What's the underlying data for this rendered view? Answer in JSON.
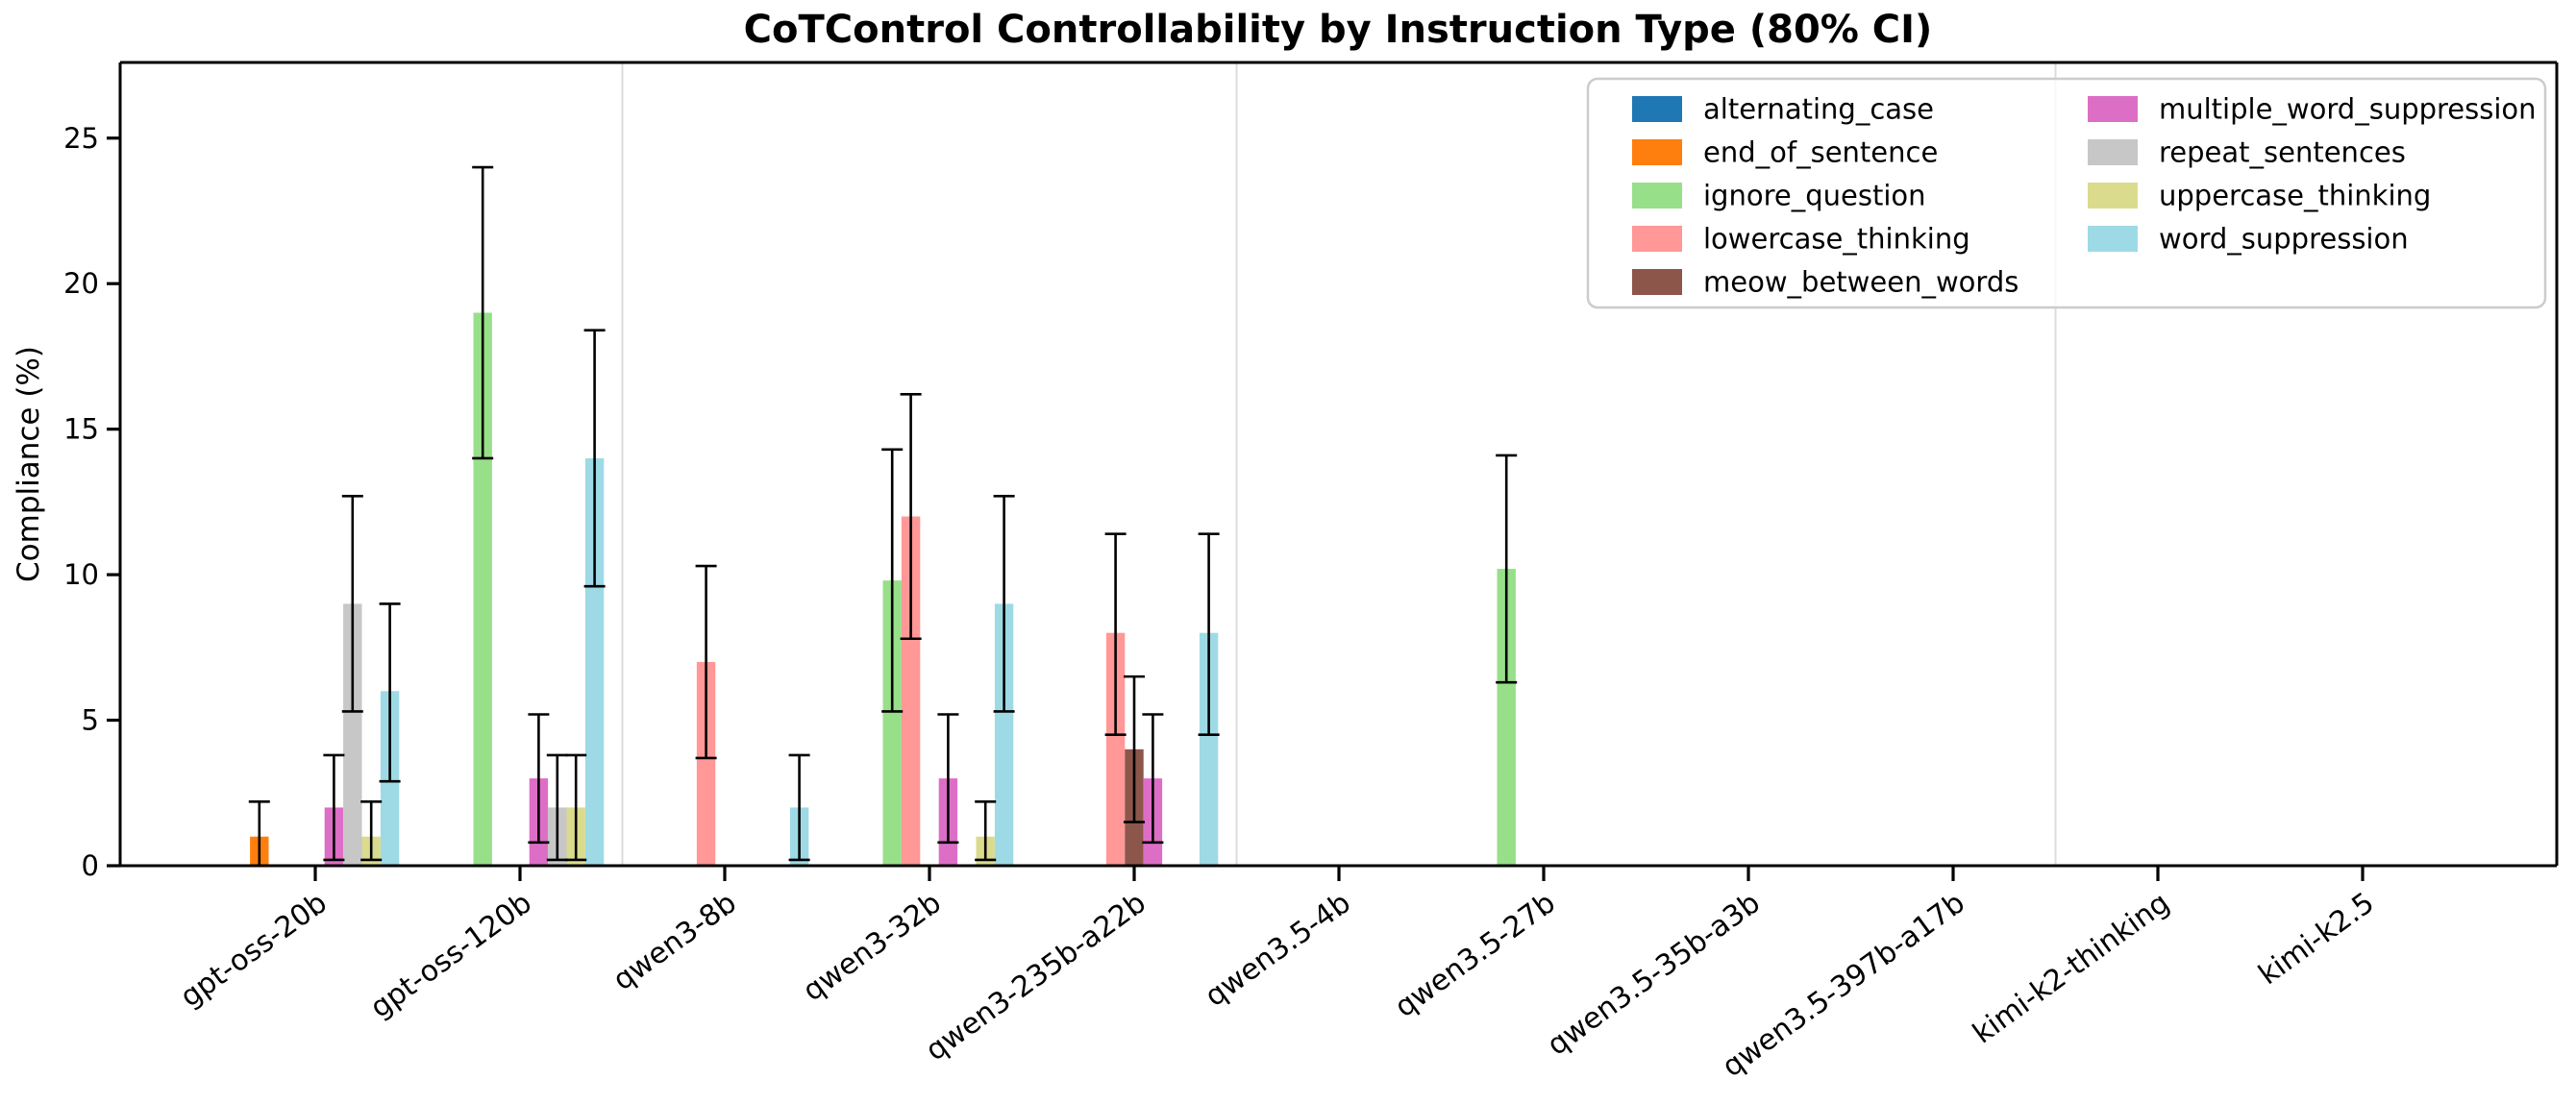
{
  "chart_data": {
    "type": "bar",
    "title": "CoTControl Controllability by Instruction Type (80% CI)",
    "ylabel": "Compliance (%)",
    "xlabel": "",
    "ylim": [
      0,
      27.6
    ],
    "yticks": [
      0,
      5,
      10,
      15,
      20,
      25
    ],
    "grid": "off",
    "error_bar_type": "80% confidence interval",
    "legend_position": "upper right, 2 columns",
    "categories": [
      "gpt-oss-20b",
      "gpt-oss-120b",
      "qwen3-8b",
      "qwen3-32b",
      "qwen3-235b-a22b",
      "qwen3.5-4b",
      "qwen3.5-27b",
      "qwen3.5-35b-a3b",
      "qwen3.5-397b-a17b",
      "kimi-k2-thinking",
      "kimi-k2.5"
    ],
    "family_separators_after_index": [
      1,
      4,
      8
    ],
    "series": [
      {
        "name": "alternating_case",
        "color": "#1f77b4",
        "values": [
          0,
          0,
          0,
          0,
          0,
          0,
          0,
          0,
          0,
          0,
          0
        ],
        "ci_low": [
          null,
          null,
          null,
          null,
          null,
          null,
          null,
          null,
          null,
          null,
          null
        ],
        "ci_high": [
          null,
          null,
          null,
          null,
          null,
          null,
          null,
          null,
          null,
          null,
          null
        ]
      },
      {
        "name": "end_of_sentence",
        "color": "#ff7f0e",
        "values": [
          1,
          0,
          0,
          0,
          0,
          0,
          0,
          0,
          0,
          0,
          0
        ],
        "ci_low": [
          0,
          null,
          null,
          null,
          null,
          null,
          null,
          null,
          null,
          null,
          null
        ],
        "ci_high": [
          2.2,
          null,
          null,
          null,
          null,
          null,
          null,
          null,
          null,
          null,
          null
        ]
      },
      {
        "name": "ignore_question",
        "color": "#98df8a",
        "values": [
          0,
          19,
          0,
          9.8,
          0,
          0,
          10.2,
          0,
          0,
          0,
          0
        ],
        "ci_low": [
          null,
          14,
          null,
          5.3,
          null,
          null,
          6.3,
          null,
          null,
          null,
          null
        ],
        "ci_high": [
          null,
          24,
          null,
          14.3,
          null,
          null,
          14.1,
          null,
          null,
          null,
          null
        ]
      },
      {
        "name": "lowercase_thinking",
        "color": "#ff9896",
        "values": [
          0,
          0,
          7,
          12,
          8,
          0,
          0,
          0,
          0,
          0,
          0
        ],
        "ci_low": [
          null,
          null,
          3.7,
          7.8,
          4.5,
          null,
          null,
          null,
          null,
          null,
          null
        ],
        "ci_high": [
          null,
          null,
          10.3,
          16.2,
          11.4,
          null,
          null,
          null,
          null,
          null,
          null
        ]
      },
      {
        "name": "meow_between_words",
        "color": "#8c564b",
        "values": [
          0,
          0,
          0,
          0,
          4,
          0,
          0,
          0,
          0,
          0,
          0
        ],
        "ci_low": [
          null,
          null,
          null,
          null,
          1.5,
          null,
          null,
          null,
          null,
          null,
          null
        ],
        "ci_high": [
          null,
          null,
          null,
          null,
          6.5,
          null,
          null,
          null,
          null,
          null,
          null
        ]
      },
      {
        "name": "multiple_word_suppression",
        "color": "#dd6ec6",
        "values": [
          2,
          3,
          0,
          3,
          3,
          0,
          0,
          0,
          0,
          0,
          0
        ],
        "ci_low": [
          0.2,
          0.8,
          null,
          0.8,
          0.8,
          null,
          null,
          null,
          null,
          null,
          null
        ],
        "ci_high": [
          3.8,
          5.2,
          null,
          5.2,
          5.2,
          null,
          null,
          null,
          null,
          null,
          null
        ]
      },
      {
        "name": "repeat_sentences",
        "color": "#c7c7c7",
        "values": [
          9,
          2,
          0,
          0,
          0,
          0,
          0,
          0,
          0,
          0,
          0
        ],
        "ci_low": [
          5.3,
          0.2,
          null,
          null,
          null,
          null,
          null,
          null,
          null,
          null,
          null
        ],
        "ci_high": [
          12.7,
          3.8,
          null,
          null,
          null,
          null,
          null,
          null,
          null,
          null,
          null
        ]
      },
      {
        "name": "uppercase_thinking",
        "color": "#dbdb8d",
        "values": [
          1,
          2,
          0,
          1,
          0,
          0,
          0,
          0,
          0,
          0,
          0
        ],
        "ci_low": [
          0.2,
          0.2,
          null,
          0.2,
          null,
          null,
          null,
          null,
          null,
          null,
          null
        ],
        "ci_high": [
          2.2,
          3.8,
          null,
          2.2,
          null,
          null,
          null,
          null,
          null,
          null,
          null
        ]
      },
      {
        "name": "word_suppression",
        "color": "#9edae5",
        "values": [
          6,
          14,
          2,
          9,
          8,
          0,
          0,
          0,
          0,
          0,
          0
        ],
        "ci_low": [
          2.9,
          9.6,
          0.2,
          5.3,
          4.5,
          null,
          null,
          null,
          null,
          null,
          null
        ],
        "ci_high": [
          9.0,
          18.4,
          3.8,
          12.7,
          11.4,
          null,
          null,
          null,
          null,
          null,
          null
        ]
      }
    ],
    "legend": {
      "column1": [
        "alternating_case",
        "end_of_sentence",
        "ignore_question",
        "lowercase_thinking",
        "meow_between_words"
      ],
      "column2": [
        "multiple_word_suppression",
        "repeat_sentences",
        "uppercase_thinking",
        "word_suppression"
      ]
    },
    "colors": {
      "separator_line": "#dcdcdc",
      "error_bar": "#000000",
      "axis": "#000000",
      "legend_border": "#cccccc",
      "background": "#ffffff"
    }
  }
}
